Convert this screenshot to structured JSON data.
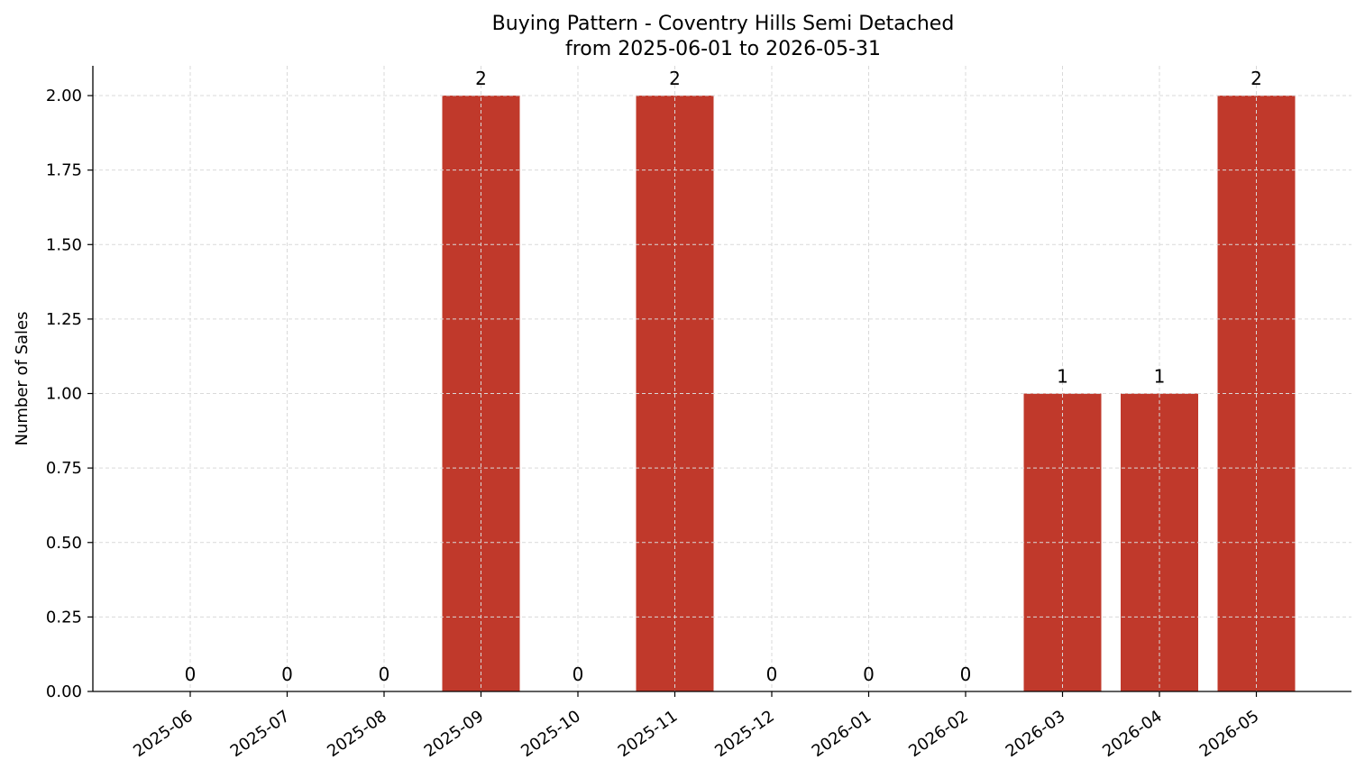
{
  "chart_data": {
    "type": "bar",
    "title": "Buying Pattern - Coventry Hills Semi Detached",
    "subtitle": "from 2025-06-01 to 2026-05-31",
    "xlabel": "",
    "ylabel": "Number of Sales",
    "categories": [
      "2025-06",
      "2025-07",
      "2025-08",
      "2025-09",
      "2025-10",
      "2025-11",
      "2025-12",
      "2026-01",
      "2026-02",
      "2026-03",
      "2026-04",
      "2026-05"
    ],
    "values": [
      0,
      0,
      0,
      2,
      0,
      2,
      0,
      0,
      0,
      1,
      1,
      2
    ],
    "data_labels": [
      "0",
      "0",
      "0",
      "2",
      "0",
      "2",
      "0",
      "0",
      "0",
      "1",
      "1",
      "2"
    ],
    "ylim": [
      0,
      2.1
    ],
    "yticks": [
      "0.00",
      "0.25",
      "0.50",
      "0.75",
      "1.00",
      "1.25",
      "1.50",
      "1.75",
      "2.00"
    ],
    "ytick_values": [
      0,
      0.25,
      0.5,
      0.75,
      1.0,
      1.25,
      1.5,
      1.75,
      2.0
    ],
    "grid": true,
    "bar_color": "#c0392b",
    "grid_color": "#d9d9d9"
  }
}
